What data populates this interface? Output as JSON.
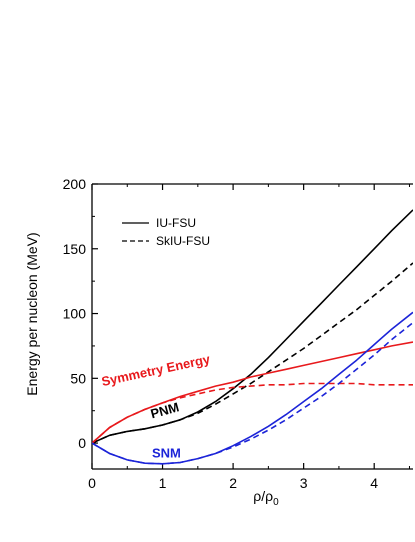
{
  "chart_data": {
    "type": "line",
    "xlabel": "ρ/ρ",
    "xlabel_sub": "0",
    "ylabel": "Energy per nucleon (MeV)",
    "xlim": [
      0,
      4.55
    ],
    "ylim": [
      -20,
      200
    ],
    "xticks": [
      0,
      1,
      2,
      3,
      4
    ],
    "yticks": [
      0,
      50,
      100,
      150,
      200
    ],
    "grid": false,
    "legend": {
      "placement": "top-left",
      "entries": [
        {
          "label": "IU-FSU",
          "style": "solid",
          "color": "#000000"
        },
        {
          "label": "SkIU-FSU",
          "style": "dashed",
          "color": "#000000"
        }
      ]
    },
    "annotations": [
      {
        "text": "Symmetry Energy",
        "color": "#e8191c",
        "x": 0.15,
        "y": 44,
        "rotate": -12
      },
      {
        "text": "PNM",
        "color": "#000000",
        "x": 0.85,
        "y": 19,
        "rotate": -15
      },
      {
        "text": "SNM",
        "color": "#1c24d8",
        "x": 0.85,
        "y": -11,
        "rotate": 0
      }
    ],
    "series": [
      {
        "group": "PNM",
        "model": "IU-FSU",
        "color": "#000000",
        "style": "solid",
        "x": [
          0,
          0.25,
          0.5,
          0.75,
          1.0,
          1.25,
          1.5,
          1.75,
          2.0,
          2.25,
          2.5,
          2.75,
          3.0,
          3.25,
          3.5,
          3.75,
          4.0,
          4.25,
          4.55
        ],
        "y": [
          0,
          6,
          9,
          11,
          14,
          18,
          24,
          32,
          42,
          53,
          66,
          80,
          94,
          108,
          122,
          136,
          150,
          164,
          180
        ]
      },
      {
        "group": "PNM",
        "model": "SkIU-FSU",
        "color": "#000000",
        "style": "dashed",
        "x": [
          0,
          0.25,
          0.5,
          0.75,
          1.0,
          1.25,
          1.5,
          1.75,
          2.0,
          2.25,
          2.5,
          2.75,
          3.0,
          3.25,
          3.5,
          3.75,
          4.0,
          4.25,
          4.55
        ],
        "y": [
          0,
          6,
          9,
          11,
          14,
          18,
          23,
          30,
          38,
          46,
          55,
          64,
          73,
          83,
          93,
          103,
          114,
          125,
          139
        ]
      },
      {
        "group": "Symmetry Energy",
        "model": "IU-FSU",
        "color": "#e8191c",
        "style": "solid",
        "x": [
          0,
          0.25,
          0.5,
          0.75,
          1.0,
          1.25,
          1.5,
          1.75,
          2.0,
          2.25,
          2.5,
          2.75,
          3.0,
          3.25,
          3.5,
          3.75,
          4.0,
          4.25,
          4.55
        ],
        "y": [
          0,
          12,
          20,
          26,
          31,
          36,
          40,
          44,
          47,
          51,
          54,
          57,
          60,
          63,
          66,
          69,
          72,
          75,
          78
        ]
      },
      {
        "group": "Symmetry Energy",
        "model": "SkIU-FSU",
        "color": "#e8191c",
        "style": "dashed",
        "x": [
          0,
          0.25,
          0.5,
          0.75,
          1.0,
          1.25,
          1.5,
          1.75,
          2.0,
          2.25,
          2.5,
          2.75,
          3.0,
          3.25,
          3.5,
          3.75,
          4.0,
          4.25,
          4.55
        ],
        "y": [
          0,
          12,
          20,
          26,
          31,
          35,
          38,
          41,
          43,
          44,
          45,
          45,
          46,
          46,
          46,
          46,
          45,
          45,
          45
        ]
      },
      {
        "group": "SNM",
        "model": "IU-FSU",
        "color": "#1c24d8",
        "style": "solid",
        "x": [
          0,
          0.25,
          0.5,
          0.75,
          1.0,
          1.25,
          1.5,
          1.75,
          2.0,
          2.25,
          2.5,
          2.75,
          3.0,
          3.25,
          3.5,
          3.75,
          4.0,
          4.25,
          4.55
        ],
        "y": [
          0,
          -8,
          -13,
          -15.5,
          -16,
          -15,
          -12,
          -8,
          -2,
          5,
          13,
          22,
          32,
          42,
          53,
          64,
          76,
          88,
          101
        ]
      },
      {
        "group": "SNM",
        "model": "SkIU-FSU",
        "color": "#1c24d8",
        "style": "dashed",
        "x": [
          0,
          0.25,
          0.5,
          0.75,
          1.0,
          1.25,
          1.5,
          1.75,
          2.0,
          2.25,
          2.5,
          2.75,
          3.0,
          3.25,
          3.5,
          3.75,
          4.0,
          4.25,
          4.55
        ],
        "y": [
          0,
          -8,
          -13,
          -15.5,
          -16,
          -15,
          -12,
          -8,
          -3,
          3,
          10,
          18,
          27,
          36,
          46,
          57,
          68,
          80,
          93
        ]
      }
    ]
  }
}
